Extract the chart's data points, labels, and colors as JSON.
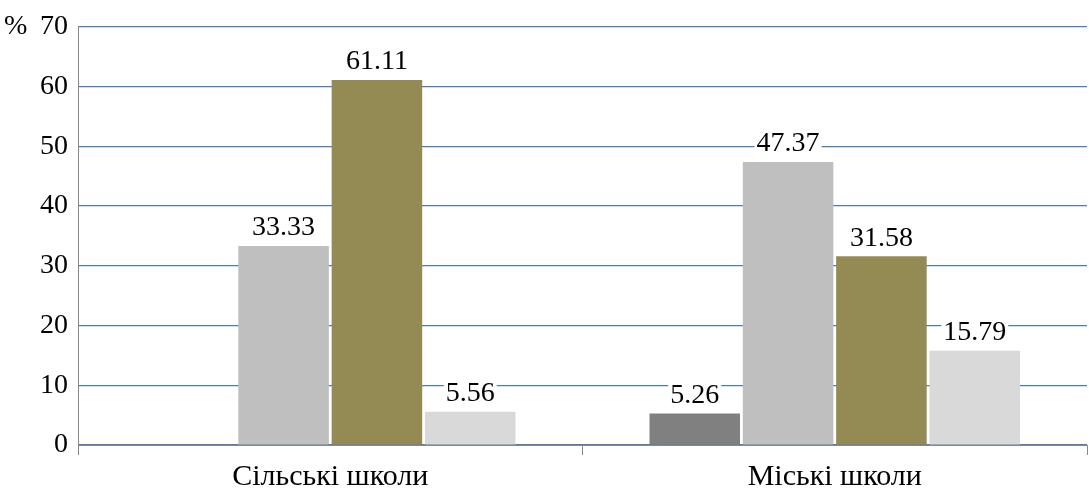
{
  "chart_data": {
    "type": "bar",
    "ylabel": "%",
    "categories": [
      "Сільські школи",
      "Міські школи"
    ],
    "series": [
      {
        "color": "#808080",
        "values": [
          null,
          5.26
        ]
      },
      {
        "color": "#bfbfbf",
        "values": [
          33.33,
          47.37
        ]
      },
      {
        "color": "#948a54",
        "values": [
          61.11,
          31.58
        ]
      },
      {
        "color": "#d9d9d9",
        "values": [
          5.56,
          15.79
        ]
      }
    ],
    "ylim": [
      0,
      70
    ],
    "yticks": [
      0,
      10,
      20,
      30,
      40,
      50,
      60,
      70
    ],
    "grid": "y",
    "data_labels": true,
    "legend": false
  }
}
